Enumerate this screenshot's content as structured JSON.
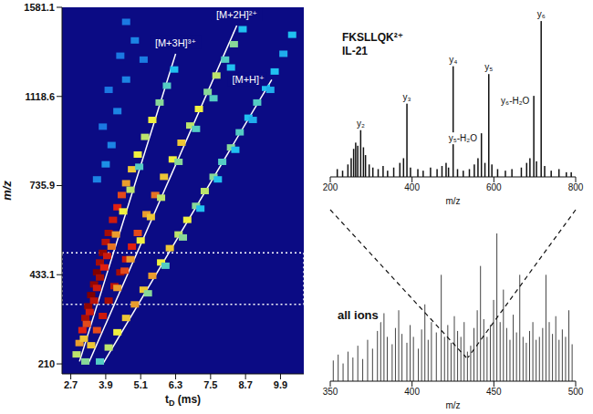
{
  "chart_data": [
    {
      "type": "heatmap",
      "x_label": "tD (ms)",
      "y_label": "m/z",
      "xlim": [
        2.4,
        10.7
      ],
      "xticks": [
        2.7,
        3.9,
        5.1,
        6.3,
        7.5,
        8.7,
        9.9
      ],
      "ylim": [
        190,
        1581.1
      ],
      "yticks": [
        210,
        433.1,
        735.9,
        1118.6,
        1581.1
      ],
      "cells": {
        "t": [
          3.6,
          3.9,
          4.1,
          3.8,
          4.3,
          4.0,
          4.6,
          4.4,
          4.9,
          4.6,
          5.2,
          2.9,
          3.0,
          3.1,
          3.2,
          3.3,
          3.4,
          3.5,
          3.6,
          3.7,
          3.8,
          3.9,
          4.0,
          4.15,
          4.3,
          4.45,
          4.6,
          4.8,
          5.0,
          5.25,
          5.5,
          5.75,
          6.0,
          6.25,
          3.15,
          3.25,
          3.35,
          3.5,
          3.6,
          3.7,
          3.85,
          3.95,
          4.1,
          4.25,
          4.5,
          4.75,
          5.05,
          3.2,
          3.4,
          3.6,
          3.8,
          4.0,
          4.2,
          4.4,
          4.6,
          4.8,
          5.0,
          5.3,
          5.6,
          5.9,
          6.2,
          6.5,
          6.8,
          7.1,
          7.4,
          7.7,
          8.0,
          8.3,
          8.6,
          4.3,
          4.55,
          4.75,
          5.1,
          5.45,
          5.8,
          6.4,
          7.0,
          7.6,
          8.2,
          3.7,
          4.0,
          4.3,
          4.6,
          4.9,
          5.2,
          5.5,
          5.8,
          6.1,
          6.4,
          6.7,
          7.0,
          7.3,
          7.6,
          7.9,
          8.2,
          8.5,
          8.8,
          9.1,
          9.4,
          9.7,
          10.0,
          10.3,
          5.35,
          5.95,
          6.55,
          7.15,
          7.75,
          8.35,
          8.95,
          9.55
        ],
        "mz": [
          760,
          820,
          900,
          980,
          1050,
          1150,
          1200,
          1320,
          1400,
          1500,
          1300,
          230,
          255,
          285,
          315,
          345,
          375,
          405,
          440,
          470,
          500,
          535,
          565,
          610,
          655,
          700,
          745,
          800,
          860,
          935,
          1010,
          1090,
          1170,
          1250,
          265,
          300,
          330,
          360,
          395,
          425,
          455,
          490,
          520,
          560,
          640,
          720,
          810,
          215,
          250,
          285,
          320,
          360,
          400,
          440,
          480,
          520,
          565,
          630,
          700,
          770,
          840,
          910,
          985,
          1060,
          1140,
          1220,
          1300,
          1380,
          1460,
          395,
          445,
          480,
          540,
          620,
          690,
          830,
          970,
          1110,
          1260,
          215,
          245,
          280,
          315,
          350,
          390,
          430,
          470,
          515,
          560,
          610,
          660,
          715,
          770,
          830,
          890,
          955,
          1020,
          1090,
          1160,
          1240,
          1330,
          1430,
          380,
          460,
          550,
          650,
          760,
          880,
          1010,
          1150
        ],
        "intensity": [
          0.15,
          0.18,
          0.15,
          0.12,
          0.15,
          0.12,
          0.15,
          0.12,
          0.15,
          0.12,
          0.13,
          0.45,
          0.6,
          0.75,
          0.9,
          0.95,
          1,
          0.95,
          1,
          0.9,
          0.95,
          0.85,
          0.9,
          0.8,
          0.75,
          0.7,
          0.6,
          0.55,
          0.5,
          0.45,
          0.5,
          0.4,
          0.35,
          0.3,
          0.55,
          0.7,
          0.8,
          0.85,
          0.8,
          0.9,
          0.75,
          0.8,
          0.65,
          0.6,
          0.5,
          0.45,
          0.35,
          0.4,
          0.55,
          0.7,
          0.8,
          0.9,
          0.85,
          0.9,
          0.8,
          0.75,
          0.7,
          0.6,
          0.65,
          0.55,
          0.5,
          0.55,
          0.45,
          0.5,
          0.4,
          0.45,
          0.35,
          0.4,
          0.3,
          0.6,
          0.7,
          0.6,
          0.5,
          0.55,
          0.45,
          0.4,
          0.35,
          0.35,
          0.3,
          0.35,
          0.45,
          0.5,
          0.55,
          0.6,
          0.55,
          0.6,
          0.5,
          0.55,
          0.45,
          0.5,
          0.4,
          0.45,
          0.4,
          0.35,
          0.4,
          0.35,
          0.3,
          0.35,
          0.3,
          0.3,
          0.25,
          0.3,
          0.4,
          0.35,
          0.4,
          0.3,
          0.3,
          0.3,
          0.25,
          0.25
        ]
      },
      "selection_mz": [
        350,
        500
      ],
      "series": [
        {
          "name": "[M+3H]³⁺",
          "color": "#ffffff",
          "type": "line",
          "x": [
            3.0,
            6.3
          ],
          "values": [
            215,
            1330
          ]
        },
        {
          "name": "[M+2H]²⁺",
          "color": "#ffffff",
          "type": "line",
          "x": [
            3.3,
            8.4
          ],
          "values": [
            210,
            1480
          ]
        },
        {
          "name": "[M+H]⁺",
          "color": "#ffffff",
          "type": "line",
          "x": [
            3.8,
            9.6
          ],
          "values": [
            210,
            1200
          ]
        }
      ]
    },
    {
      "type": "bar",
      "title": "FKSLLQK²⁺",
      "subtitle": "IL-21",
      "x_label": "m/z",
      "xlim": [
        200,
        800
      ],
      "xticks": [
        200,
        400,
        600,
        800
      ],
      "ylim": [
        0,
        110
      ],
      "tick_labels": "x",
      "color": "#111111",
      "x": [
        218,
        231,
        244,
        252,
        258,
        263,
        268,
        275.2,
        282,
        287,
        296,
        305,
        318,
        330,
        341,
        356,
        371,
        380,
        388.3,
        397,
        415,
        428,
        446,
        462,
        474,
        484,
        490,
        501.3,
        512,
        526,
        541,
        553,
        562,
        570.4,
        579,
        588.4,
        596,
        610,
        629,
        645,
        668,
        681,
        689,
        698.5,
        705,
        716.5,
        725,
        741,
        760,
        778,
        790
      ],
      "values": [
        5,
        4,
        8,
        12,
        18,
        22,
        20,
        30,
        19,
        14,
        8,
        6,
        5,
        7,
        4,
        6,
        9,
        12,
        47,
        6,
        5,
        4,
        6,
        5,
        7,
        9,
        6,
        71,
        5,
        4,
        5,
        8,
        12,
        28,
        9,
        66,
        8,
        5,
        4,
        5,
        6,
        9,
        12,
        52,
        10,
        100,
        7,
        4,
        5,
        3,
        3
      ],
      "labels": [
        null,
        null,
        null,
        null,
        null,
        null,
        null,
        "y₂",
        null,
        null,
        null,
        null,
        null,
        null,
        null,
        null,
        null,
        null,
        "y₃",
        null,
        null,
        null,
        null,
        null,
        null,
        null,
        null,
        "y₄",
        null,
        null,
        null,
        null,
        null,
        "y₅-H₂O",
        null,
        "y₅",
        null,
        null,
        null,
        null,
        null,
        null,
        null,
        "y₆-H₂O",
        null,
        "y₆",
        null,
        null,
        null,
        null,
        null
      ]
    },
    {
      "type": "bar",
      "title": "all ions",
      "x_label": "m/z",
      "xlim": [
        350,
        500
      ],
      "xticks": [
        350,
        400,
        450,
        500
      ],
      "ylim": [
        0,
        100
      ],
      "tick_labels": "x",
      "color": "#444444",
      "x": [
        352,
        355,
        358,
        361,
        364,
        367,
        370,
        373,
        376,
        379,
        381,
        383,
        385,
        388,
        390,
        392,
        394,
        397,
        399,
        401,
        404,
        406,
        408,
        410,
        412,
        415,
        418,
        420,
        422,
        424,
        426,
        428,
        430,
        432,
        434,
        436,
        438,
        440,
        442,
        444,
        446,
        448,
        450,
        452,
        454,
        456,
        458,
        460,
        462,
        464,
        466,
        468,
        470,
        472,
        474,
        476,
        478,
        480,
        482,
        484,
        486,
        488,
        490,
        492,
        494,
        496,
        498
      ],
      "values": [
        14,
        18,
        12,
        20,
        16,
        24,
        15,
        28,
        22,
        34,
        40,
        46,
        30,
        25,
        36,
        48,
        32,
        26,
        38,
        30,
        22,
        35,
        52,
        28,
        40,
        33,
        72,
        30,
        38,
        26,
        44,
        34,
        30,
        40,
        20,
        24,
        36,
        48,
        78,
        42,
        30,
        38,
        55,
        100,
        40,
        62,
        36,
        28,
        45,
        33,
        72,
        30,
        26,
        34,
        40,
        28,
        30,
        36,
        72,
        40,
        32,
        44,
        28,
        35,
        30,
        48,
        25
      ]
    }
  ]
}
